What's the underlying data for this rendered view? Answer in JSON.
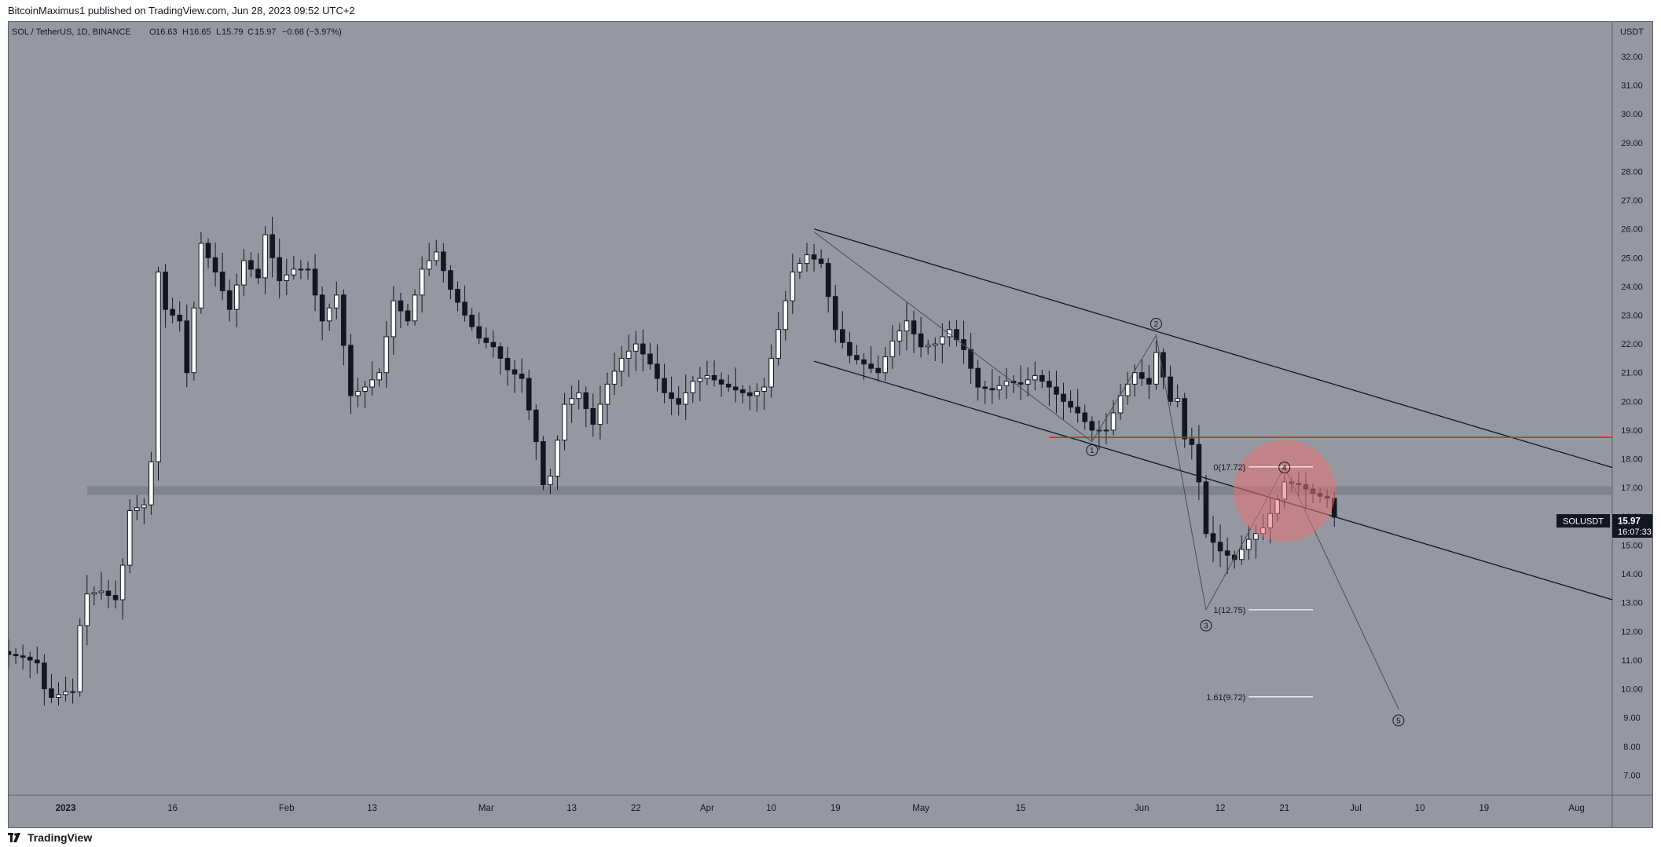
{
  "header": {
    "published": "BitcoinMaximus1 published on TradingView.com, Jun 28, 2023 09:52 UTC+2"
  },
  "symbol_bar": {
    "title": "SOL / TetherUS, 1D, BINANCE",
    "o_label": "O",
    "o": "16.63",
    "h_label": "H",
    "h": "16.65",
    "l_label": "L",
    "l": "15.79",
    "c_label": "C",
    "c": "15.97",
    "change": "−0.66 (−3.97%)"
  },
  "price_badge": {
    "symbol": "SOLUSDT",
    "price": "15.97",
    "countdown": "16:07:33"
  },
  "footer": {
    "brand": "TradingView"
  },
  "colors": {
    "background": "#9598a1",
    "up": "#ffffff",
    "down": "#131722",
    "support_band": "#7d8089",
    "resistance_line": "#e01e1e",
    "highlight_circle": "#e57373"
  },
  "chart_data": {
    "type": "candlestick",
    "y_unit": "USDT",
    "ylim": [
      6.3,
      33.2
    ],
    "y_ticks": [
      "7.00",
      "8.00",
      "9.00",
      "10.00",
      "11.00",
      "12.00",
      "13.00",
      "14.00",
      "15.00",
      "16.00",
      "17.00",
      "18.00",
      "19.00",
      "20.00",
      "21.00",
      "22.00",
      "23.00",
      "24.00",
      "25.00",
      "26.00",
      "27.00",
      "28.00",
      "29.00",
      "30.00",
      "31.00",
      "32.00"
    ],
    "x_ticks": [
      {
        "date": "2023-01-01",
        "label": "2023"
      },
      {
        "date": "2023-01-16",
        "label": "16"
      },
      {
        "date": "2023-02-01",
        "label": "Feb"
      },
      {
        "date": "2023-02-13",
        "label": "13"
      },
      {
        "date": "2023-03-01",
        "label": "Mar"
      },
      {
        "date": "2023-03-13",
        "label": "13"
      },
      {
        "date": "2023-03-22",
        "label": "22"
      },
      {
        "date": "2023-04-01",
        "label": "Apr"
      },
      {
        "date": "2023-04-10",
        "label": "10"
      },
      {
        "date": "2023-04-19",
        "label": "19"
      },
      {
        "date": "2023-05-01",
        "label": "May"
      },
      {
        "date": "2023-05-15",
        "label": "15"
      },
      {
        "date": "2023-06-01",
        "label": "Jun"
      },
      {
        "date": "2023-06-12",
        "label": "12"
      },
      {
        "date": "2023-06-21",
        "label": "21"
      },
      {
        "date": "2023-07-01",
        "label": "Jul"
      },
      {
        "date": "2023-07-10",
        "label": "10"
      },
      {
        "date": "2023-07-19",
        "label": "19"
      },
      {
        "date": "2023-08-01",
        "label": "Aug"
      }
    ],
    "x_range": [
      "2022-12-24",
      "2023-08-06"
    ],
    "close_path": [
      [
        "2022-12-24",
        11.2
      ],
      [
        "2022-12-26",
        11.1
      ],
      [
        "2022-12-28",
        10.9
      ],
      [
        "2022-12-29",
        10.0
      ],
      [
        "2022-12-30",
        9.7
      ],
      [
        "2023-01-01",
        9.9
      ],
      [
        "2023-01-02",
        9.9
      ],
      [
        "2023-01-03",
        12.2
      ],
      [
        "2023-01-04",
        13.3
      ],
      [
        "2023-01-06",
        13.4
      ],
      [
        "2023-01-08",
        13.1
      ],
      [
        "2023-01-09",
        14.3
      ],
      [
        "2023-01-10",
        16.2
      ],
      [
        "2023-01-12",
        16.4
      ],
      [
        "2023-01-13",
        17.9
      ],
      [
        "2023-01-14",
        24.5
      ],
      [
        "2023-01-15",
        23.2
      ],
      [
        "2023-01-17",
        22.8
      ],
      [
        "2023-01-18",
        21.0
      ],
      [
        "2023-01-20",
        25.5
      ],
      [
        "2023-01-22",
        24.5
      ],
      [
        "2023-01-24",
        23.2
      ],
      [
        "2023-01-26",
        24.9
      ],
      [
        "2023-01-28",
        24.3
      ],
      [
        "2023-01-29",
        25.8
      ],
      [
        "2023-01-31",
        24.2
      ],
      [
        "2023-02-02",
        24.6
      ],
      [
        "2023-02-04",
        24.6
      ],
      [
        "2023-02-06",
        22.8
      ],
      [
        "2023-02-08",
        23.7
      ],
      [
        "2023-02-10",
        20.2
      ],
      [
        "2023-02-12",
        20.5
      ],
      [
        "2023-02-14",
        21.0
      ],
      [
        "2023-02-16",
        23.5
      ],
      [
        "2023-02-18",
        22.8
      ],
      [
        "2023-02-20",
        24.6
      ],
      [
        "2023-02-22",
        25.2
      ],
      [
        "2023-02-24",
        23.9
      ],
      [
        "2023-02-26",
        23.0
      ],
      [
        "2023-02-28",
        22.2
      ],
      [
        "2023-03-02",
        21.9
      ],
      [
        "2023-03-04",
        21.1
      ],
      [
        "2023-03-06",
        20.8
      ],
      [
        "2023-03-08",
        18.6
      ],
      [
        "2023-03-09",
        17.1
      ],
      [
        "2023-03-10",
        17.4
      ],
      [
        "2023-03-12",
        19.9
      ],
      [
        "2023-03-14",
        20.3
      ],
      [
        "2023-03-16",
        19.2
      ],
      [
        "2023-03-18",
        20.6
      ],
      [
        "2023-03-20",
        21.5
      ],
      [
        "2023-03-22",
        22.0
      ],
      [
        "2023-03-24",
        21.3
      ],
      [
        "2023-03-26",
        20.3
      ],
      [
        "2023-03-28",
        19.9
      ],
      [
        "2023-03-30",
        20.7
      ],
      [
        "2023-04-01",
        20.9
      ],
      [
        "2023-04-03",
        20.6
      ],
      [
        "2023-04-05",
        20.4
      ],
      [
        "2023-04-07",
        20.2
      ],
      [
        "2023-04-09",
        20.5
      ],
      [
        "2023-04-11",
        22.5
      ],
      [
        "2023-04-13",
        24.5
      ],
      [
        "2023-04-15",
        25.1
      ],
      [
        "2023-04-17",
        24.8
      ],
      [
        "2023-04-19",
        22.5
      ],
      [
        "2023-04-21",
        21.6
      ],
      [
        "2023-04-23",
        21.3
      ],
      [
        "2023-04-25",
        21.0
      ],
      [
        "2023-04-27",
        22.1
      ],
      [
        "2023-04-29",
        22.8
      ],
      [
        "2023-05-01",
        21.9
      ],
      [
        "2023-05-03",
        22.0
      ],
      [
        "2023-05-05",
        22.5
      ],
      [
        "2023-05-07",
        21.8
      ],
      [
        "2023-05-09",
        20.5
      ],
      [
        "2023-05-11",
        20.4
      ],
      [
        "2023-05-13",
        20.7
      ],
      [
        "2023-05-15",
        20.6
      ],
      [
        "2023-05-17",
        20.9
      ],
      [
        "2023-05-19",
        20.5
      ],
      [
        "2023-05-21",
        20.0
      ],
      [
        "2023-05-23",
        19.6
      ],
      [
        "2023-05-25",
        19.0
      ],
      [
        "2023-05-27",
        19.0
      ],
      [
        "2023-05-29",
        20.2
      ],
      [
        "2023-05-31",
        21.0
      ],
      [
        "2023-06-02",
        20.6
      ],
      [
        "2023-06-03",
        21.7
      ],
      [
        "2023-06-05",
        20.0
      ],
      [
        "2023-06-06",
        20.1
      ],
      [
        "2023-06-07",
        18.7
      ],
      [
        "2023-06-08",
        18.5
      ],
      [
        "2023-06-09",
        17.2
      ],
      [
        "2023-06-10",
        15.4
      ],
      [
        "2023-06-12",
        14.8
      ],
      [
        "2023-06-14",
        14.5
      ],
      [
        "2023-06-16",
        15.2
      ],
      [
        "2023-06-18",
        15.6
      ],
      [
        "2023-06-20",
        16.6
      ],
      [
        "2023-06-21",
        17.2
      ],
      [
        "2023-06-23",
        17.1
      ],
      [
        "2023-06-25",
        16.8
      ],
      [
        "2023-06-26",
        16.7
      ],
      [
        "2023-06-27",
        16.63
      ],
      [
        "2023-06-28",
        15.97
      ]
    ],
    "wave_labels": [
      {
        "label": "1",
        "date": "2023-05-25",
        "value": 18.3
      },
      {
        "label": "2",
        "date": "2023-06-03",
        "value": 22.7
      },
      {
        "label": "3",
        "date": "2023-06-10",
        "value": 12.2
      },
      {
        "label": "4",
        "date": "2023-06-21",
        "value": 17.7
      },
      {
        "label": "5",
        "date": "2023-07-07",
        "value": 8.9
      }
    ],
    "fib_levels": [
      {
        "label": "0(17.72)",
        "value": 17.72
      },
      {
        "label": "1(12.75)",
        "value": 12.75
      },
      {
        "label": "1.61(9.72)",
        "value": 9.72
      }
    ],
    "fib_range": [
      "2023-06-16",
      "2023-06-25"
    ],
    "wave_path": [
      [
        "2023-04-16",
        25.9
      ],
      [
        "2023-05-25",
        18.6
      ],
      [
        "2023-06-03",
        22.3
      ],
      [
        "2023-06-10",
        12.75
      ],
      [
        "2023-06-21",
        17.72
      ],
      [
        "2023-07-07",
        9.3
      ]
    ],
    "channel_upper": [
      [
        "2023-04-16",
        26.0
      ],
      [
        "2023-08-06",
        17.7
      ]
    ],
    "channel_lower": [
      [
        "2023-04-16",
        21.4
      ],
      [
        "2023-08-06",
        13.1
      ]
    ],
    "resistance": {
      "value": 18.75,
      "from": "2023-05-19",
      "to": "2023-08-06"
    },
    "support_band": {
      "low": 16.75,
      "high": 17.05,
      "from": "2023-01-04",
      "to": "2023-08-06"
    },
    "highlight": {
      "date": "2023-06-21",
      "value": 16.9
    },
    "last_price": 15.97
  }
}
